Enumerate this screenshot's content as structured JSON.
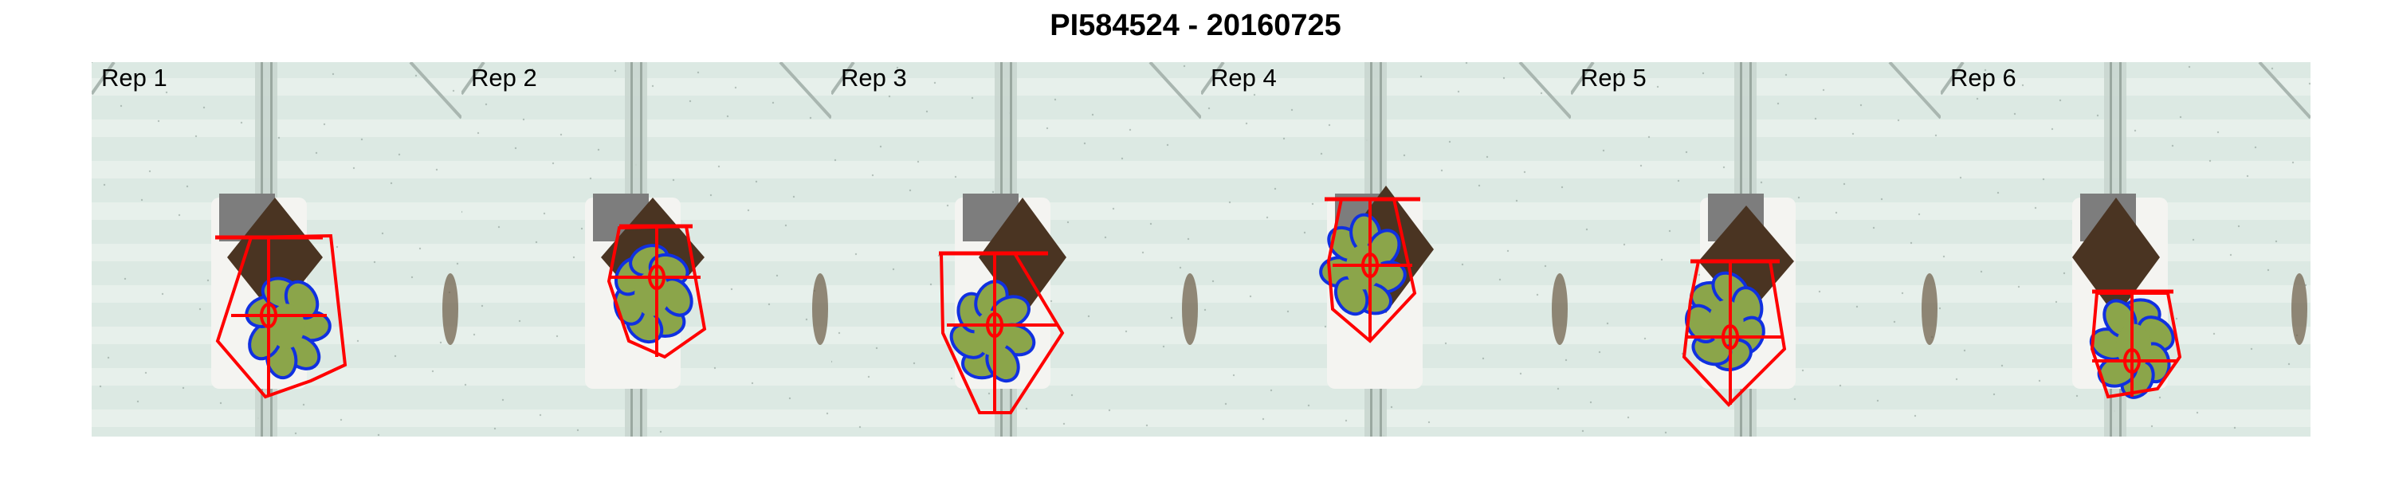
{
  "title": "PI584524 - 20160725",
  "panels": [
    {
      "label": "Rep 1"
    },
    {
      "label": "Rep 2"
    },
    {
      "label": "Rep 3"
    },
    {
      "label": "Rep 4"
    },
    {
      "label": "Rep 5"
    },
    {
      "label": "Rep 6"
    }
  ],
  "colors": {
    "background_glass": "#dce9e3",
    "glass_stripe": "#eef5f0",
    "pot_white": "#f4f4f1",
    "pot_gray": "#7d7d7d",
    "soil": "#4a3422",
    "leaf": "#8ba54a",
    "outline_blue": "#1030e0",
    "hull_red": "#ff0000"
  },
  "icons": {
    "plant": "plant-image",
    "convex-hull": "red-hull-overlay",
    "leaf-outline": "blue-outline-overlay"
  }
}
